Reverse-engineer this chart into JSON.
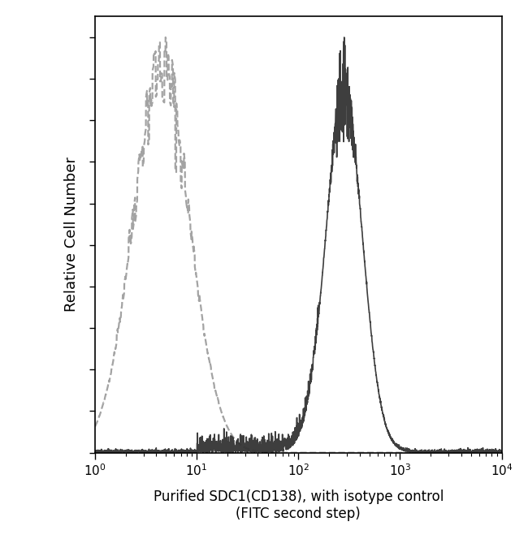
{
  "ylabel": "Relative Cell Number",
  "xlabel_line1": "Purified SDC1(CD138), with isotype control",
  "xlabel_line2": "(FITC second step)",
  "xlim": [
    1,
    10000
  ],
  "ylim": [
    0,
    1.05
  ],
  "background_color": "#ffffff",
  "isotype_peak_log": 0.65,
  "isotype_sigma": 0.28,
  "isotype_color": "#999999",
  "antibody_peak_log": 2.45,
  "antibody_sigma": 0.18,
  "antibody_color": "#333333",
  "noise_seed": 42,
  "figsize": [
    6.5,
    6.8
  ],
  "dpi": 100
}
